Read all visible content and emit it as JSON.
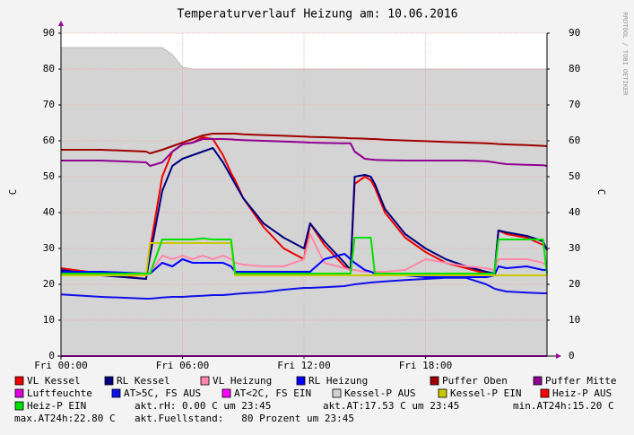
{
  "chart_data": {
    "type": "line",
    "title": "Temperaturverlauf Heizung am: 10.06.2016",
    "watermark": "RRDTOOL / TOBI OETIKER",
    "y_label": "C",
    "y2_label": "C",
    "xlim": [
      0,
      24
    ],
    "xticks": [
      {
        "value": 0,
        "label": "Fri 00:00"
      },
      {
        "value": 6,
        "label": "Fri 06:00"
      },
      {
        "value": 12,
        "label": "Fri 12:00"
      },
      {
        "value": 18,
        "label": "Fri 18:00"
      }
    ],
    "ylim": [
      0,
      90
    ],
    "yticks": [
      0,
      10,
      20,
      30,
      40,
      50,
      60,
      70,
      80,
      90
    ],
    "y2lim": [
      0,
      90
    ],
    "y2ticks": [
      0,
      10,
      20,
      30,
      40,
      50,
      60,
      70,
      80,
      90
    ],
    "grid": true,
    "x": [
      0,
      2,
      4.2,
      4.4,
      5,
      5.5,
      6,
      6.5,
      7,
      7.5,
      8,
      8.4,
      8.6,
      9,
      10,
      11,
      12,
      12.3,
      13,
      14,
      14.3,
      14.5,
      15,
      15.3,
      15.5,
      16,
      17,
      18,
      19,
      20,
      21,
      21.4,
      21.6,
      22,
      23,
      23.8,
      24
    ],
    "series": [
      {
        "name": "VL Kessel",
        "color": "#ee0000",
        "values": [
          24.5,
          23,
          21.5,
          30,
          50,
          57,
          59,
          59.5,
          61,
          60.5,
          56,
          51,
          49,
          44,
          36,
          30,
          27,
          37,
          31,
          25,
          24,
          48,
          50,
          49,
          47,
          40,
          33,
          29,
          26,
          24.5,
          23,
          22.5,
          35,
          34,
          33,
          31,
          30
        ]
      },
      {
        "name": "RL Kessel",
        "color": "#000080",
        "values": [
          24,
          22.5,
          21.5,
          28,
          46,
          53,
          55,
          56,
          57,
          58,
          54,
          50,
          48,
          44,
          37,
          33,
          30,
          37,
          32,
          26,
          24,
          50,
          50.5,
          50,
          48,
          41,
          34,
          30,
          27,
          25,
          23.5,
          23,
          35,
          34.5,
          33.5,
          32,
          29.5
        ]
      },
      {
        "name": "VL Heizung",
        "color": "#ff88aa",
        "values": [
          23.5,
          23,
          22.5,
          23,
          28,
          27,
          28,
          27,
          28,
          27,
          28,
          27,
          26,
          25.5,
          25,
          25,
          27,
          34,
          26,
          24.5,
          24,
          24,
          23.5,
          23.5,
          23.5,
          23.5,
          24,
          27,
          26,
          25,
          24.5,
          24,
          27,
          27,
          27,
          26,
          25
        ]
      },
      {
        "name": "RL Heizung",
        "color": "#0000ff",
        "values": [
          23.5,
          23.5,
          23,
          23,
          26,
          25,
          27,
          26,
          26,
          26,
          26,
          25,
          23.5,
          23.5,
          23.5,
          23.5,
          23.5,
          23.5,
          27,
          28.5,
          27,
          26,
          24,
          23.5,
          23,
          23,
          22.5,
          22,
          22,
          22,
          22,
          22.5,
          25,
          24.5,
          25,
          24,
          24
        ]
      },
      {
        "name": "Puffer Oben",
        "color": "#a00000",
        "values": [
          57.5,
          57.5,
          57,
          56.5,
          57.5,
          58.5,
          59.5,
          60.5,
          61.5,
          62,
          62,
          62,
          62,
          61.8,
          61.6,
          61.4,
          61.2,
          61.1,
          61,
          60.8,
          60.7,
          60.7,
          60.6,
          60.5,
          60.5,
          60.3,
          60.1,
          59.9,
          59.7,
          59.5,
          59.3,
          59.2,
          59.1,
          59,
          58.8,
          58.6,
          58.5
        ]
      },
      {
        "name": "Puffer Mitte",
        "color": "#900090",
        "values": [
          54.5,
          54.5,
          54,
          53,
          54,
          57,
          59,
          59.5,
          60.5,
          60.5,
          60.5,
          60.4,
          60.3,
          60.2,
          60,
          59.8,
          59.6,
          59.5,
          59.4,
          59.3,
          59.3,
          57,
          55,
          54.8,
          54.7,
          54.6,
          54.5,
          54.5,
          54.5,
          54.5,
          54.3,
          54,
          53.8,
          53.5,
          53.3,
          53.2,
          53
        ]
      },
      {
        "name": "Luftfeuchte",
        "color": "#e000e0",
        "values": [
          0,
          0,
          0,
          0,
          0,
          0,
          0,
          0,
          0,
          0,
          0,
          0,
          0,
          0,
          0,
          0,
          0,
          0,
          0,
          0,
          0,
          0,
          0,
          0,
          0,
          0,
          0,
          0,
          0,
          0,
          0,
          0,
          0,
          0,
          0,
          0,
          0
        ]
      },
      {
        "name": "AT>5C, FS AUS",
        "color": "#1010e8",
        "values": [
          17.2,
          16.5,
          16,
          16,
          16.3,
          16.5,
          16.5,
          16.7,
          16.8,
          17,
          17,
          17.2,
          17.3,
          17.5,
          17.8,
          18.5,
          19,
          19,
          19.2,
          19.5,
          19.8,
          20,
          20.3,
          20.5,
          20.6,
          20.8,
          21.2,
          21.5,
          21.8,
          21.8,
          20,
          18.8,
          18.5,
          18,
          17.7,
          17.5,
          17.5
        ]
      },
      {
        "name": "AT<2C, FS EIN",
        "color": "#ff00ff"
      },
      {
        "name": "Kessel-P AUS",
        "color": "#d4d4d4",
        "style": "area",
        "values": [
          86,
          86,
          86,
          86,
          86,
          84,
          80.5,
          80,
          80,
          80,
          80,
          80,
          80,
          80,
          80,
          80,
          80,
          80,
          80,
          80,
          80,
          80,
          80,
          80,
          80,
          80,
          80,
          80,
          80,
          80,
          80,
          80,
          80,
          80,
          80,
          80,
          80
        ]
      },
      {
        "name": "Kessel-P EIN",
        "color": "#c8c800",
        "values": [
          22.5,
          22.5,
          22.5,
          31.5,
          31.5,
          31.5,
          31.5,
          31.5,
          31.5,
          31.5,
          31.5,
          31.5,
          22.5,
          22.5,
          22.5,
          22.5,
          22.5,
          22.5,
          22.5,
          22.5,
          22.5,
          22.5,
          22.5,
          22.5,
          22.5,
          22.5,
          22.5,
          22.5,
          22.5,
          22.5,
          22.5,
          22.5,
          22.5,
          22.5,
          22.5,
          22.5,
          22.5
        ]
      },
      {
        "name": "Heiz-P AUS",
        "color": "#ff0000"
      },
      {
        "name": "Heiz-P EIN",
        "color": "#00e000",
        "values": [
          23,
          23,
          23,
          23,
          32.5,
          32.5,
          32.5,
          32.5,
          32.8,
          32.5,
          32.5,
          32.5,
          23,
          23,
          23,
          23,
          23,
          23,
          23,
          23,
          23,
          33,
          33,
          33,
          23,
          23,
          23,
          23,
          23,
          23,
          23,
          23,
          32.5,
          32.5,
          32.5,
          32.5,
          23
        ]
      }
    ],
    "comments": [
      "akt.rH: 0.00 C um 23:45",
      "akt.AT:17.53 C um 23:45",
      "min.AT24h:15.20 C",
      "max.AT24h:22.80 C",
      "akt.Fuellstand:   80 Prozent um 23:45"
    ]
  }
}
